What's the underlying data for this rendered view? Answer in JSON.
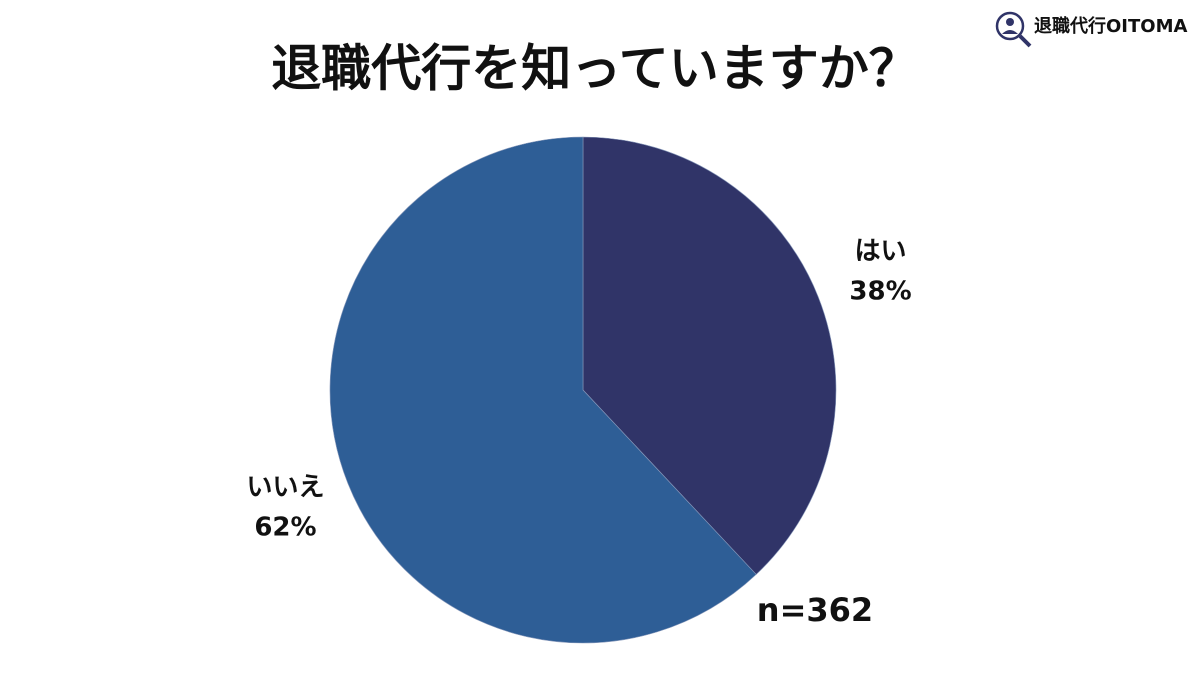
{
  "chart_data": {
    "type": "pie",
    "title": "退職代行を知っていますか？",
    "categories": [
      "はい",
      "いいえ"
    ],
    "values": [
      38,
      62
    ],
    "value_labels": [
      "38%",
      "62%"
    ],
    "colors": [
      "#303468",
      "#2e5e96"
    ],
    "annotation": "n=362",
    "brand": "退職代行OITOMA"
  }
}
